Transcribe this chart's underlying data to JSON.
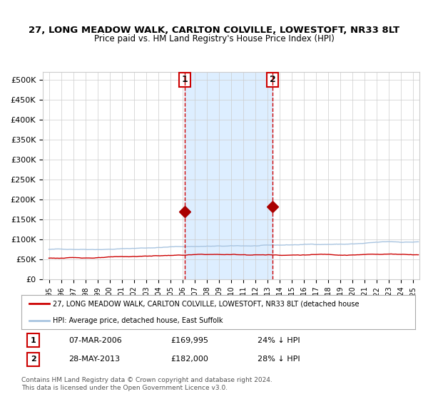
{
  "title": "27, LONG MEADOW WALK, CARLTON COLVILLE, LOWESTOFT, NR33 8LT",
  "subtitle": "Price paid vs. HM Land Registry's House Price Index (HPI)",
  "ylabel_ticks": [
    "£0",
    "£50K",
    "£100K",
    "£150K",
    "£200K",
    "£250K",
    "£300K",
    "£350K",
    "£400K",
    "£450K",
    "£500K"
  ],
  "ytick_values": [
    0,
    50000,
    100000,
    150000,
    200000,
    250000,
    300000,
    350000,
    400000,
    450000,
    500000
  ],
  "ylim": [
    0,
    520000
  ],
  "xlim_start": 1994.5,
  "xlim_end": 2025.5,
  "hpi_color": "#a8c4e0",
  "price_color": "#cc0000",
  "marker_color": "#aa0000",
  "shading_color": "#ddeeff",
  "dashed_line_color": "#cc0000",
  "purchase1_year": 2006.18,
  "purchase1_price": 169995,
  "purchase2_year": 2013.4,
  "purchase2_price": 182000,
  "legend_text1": "27, LONG MEADOW WALK, CARLTON COLVILLE, LOWESTOFT, NR33 8LT (detached house",
  "legend_text2": "HPI: Average price, detached house, East Suffolk",
  "annotation1_label": "1",
  "annotation1_date": "07-MAR-2006",
  "annotation1_price": "£169,995",
  "annotation1_hpi": "24% ↓ HPI",
  "annotation2_label": "2",
  "annotation2_date": "28-MAY-2013",
  "annotation2_price": "£182,000",
  "annotation2_hpi": "28% ↓ HPI",
  "footer": "Contains HM Land Registry data © Crown copyright and database right 2024.\nThis data is licensed under the Open Government Licence v3.0.",
  "xtick_years": [
    1995,
    1996,
    1997,
    1998,
    1999,
    2000,
    2001,
    2002,
    2003,
    2004,
    2005,
    2006,
    2007,
    2008,
    2009,
    2010,
    2011,
    2012,
    2013,
    2014,
    2015,
    2016,
    2017,
    2018,
    2019,
    2020,
    2021,
    2022,
    2023,
    2024,
    2025
  ],
  "background_color": "#ffffff",
  "grid_color": "#cccccc"
}
